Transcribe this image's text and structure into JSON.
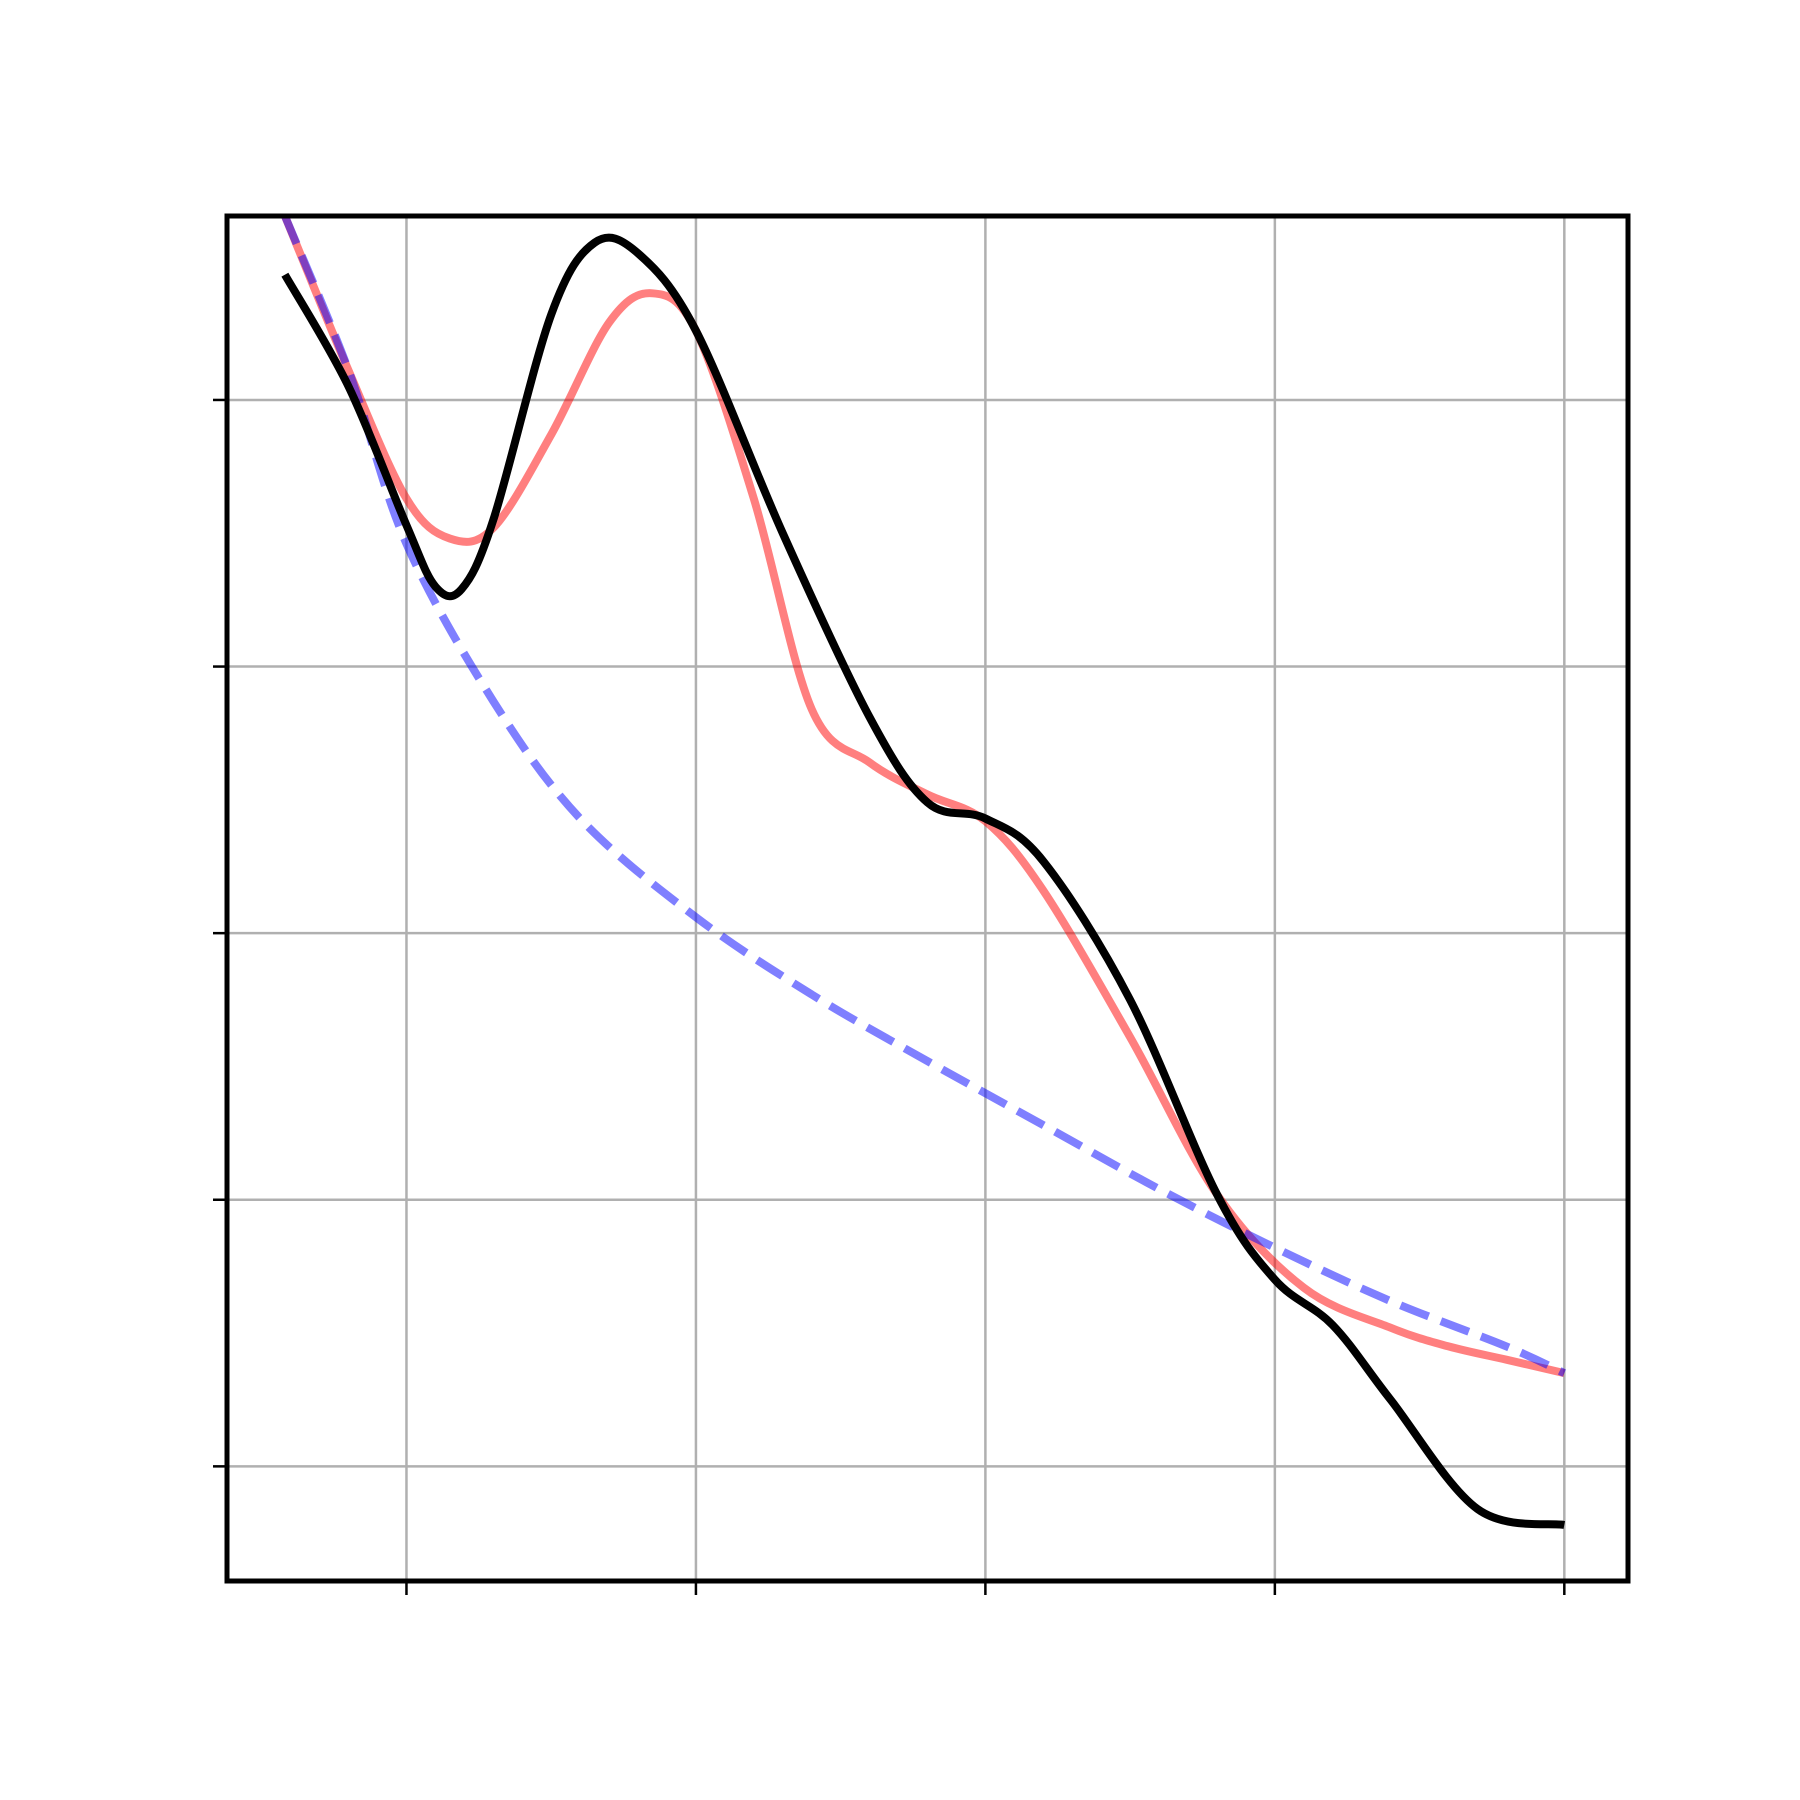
{
  "chart_data": {
    "type": "line",
    "title": "",
    "xlabel": "",
    "ylabel": "",
    "xlim": [
      -0.62,
      4.22
    ],
    "ylim": [
      -0.43,
      4.69
    ],
    "x_ticks": [
      0,
      1,
      2,
      3,
      4
    ],
    "y_ticks": [
      0,
      1,
      2,
      3,
      4
    ],
    "grid": true,
    "series": [
      {
        "style": "solid",
        "color": "#000000",
        "alpha": 1,
        "points": [
          [
            -0.42,
            4.47
          ],
          [
            -0.2,
            4.05
          ],
          [
            0,
            3.53
          ],
          [
            0.1,
            3.3
          ],
          [
            0.19,
            3.29
          ],
          [
            0.3,
            3.55
          ],
          [
            0.5,
            4.32
          ],
          [
            0.65,
            4.59
          ],
          [
            0.8,
            4.55
          ],
          [
            1,
            4.26
          ],
          [
            1.3,
            3.5
          ],
          [
            1.6,
            2.81
          ],
          [
            1.8,
            2.49
          ],
          [
            2,
            2.43
          ],
          [
            2.2,
            2.27
          ],
          [
            2.5,
            1.75
          ],
          [
            2.8,
            1.02
          ],
          [
            3,
            0.7
          ],
          [
            3.2,
            0.53
          ],
          [
            3.4,
            0.25
          ],
          [
            3.7,
            -0.16
          ],
          [
            4,
            -0.22
          ]
        ]
      },
      {
        "style": "solid",
        "color": "#ff0000",
        "alpha": 0.5,
        "points": [
          [
            -0.42,
            4.69
          ],
          [
            -0.2,
            4.11
          ],
          [
            0,
            3.63
          ],
          [
            0.15,
            3.48
          ],
          [
            0.3,
            3.52
          ],
          [
            0.5,
            3.87
          ],
          [
            0.7,
            4.29
          ],
          [
            0.85,
            4.4
          ],
          [
            1,
            4.26
          ],
          [
            1.2,
            3.63
          ],
          [
            1.4,
            2.84
          ],
          [
            1.6,
            2.64
          ],
          [
            1.8,
            2.52
          ],
          [
            2,
            2.42
          ],
          [
            2.2,
            2.16
          ],
          [
            2.5,
            1.61
          ],
          [
            2.8,
            1.02
          ],
          [
            3.1,
            0.67
          ],
          [
            3.4,
            0.52
          ],
          [
            3.6,
            0.45
          ],
          [
            3.8,
            0.4
          ],
          [
            4,
            0.35
          ]
        ]
      },
      {
        "style": "dashed",
        "color": "#0000ff",
        "alpha": 0.5,
        "points": [
          [
            -0.42,
            4.69
          ],
          [
            -0.2,
            4.11
          ],
          [
            0,
            3.46
          ],
          [
            0.3,
            2.87
          ],
          [
            0.6,
            2.43
          ],
          [
            1,
            2.06
          ],
          [
            1.4,
            1.77
          ],
          [
            1.8,
            1.52
          ],
          [
            2.2,
            1.28
          ],
          [
            2.6,
            1.04
          ],
          [
            3,
            0.82
          ],
          [
            3.4,
            0.62
          ],
          [
            3.8,
            0.45
          ],
          [
            4,
            0.35
          ]
        ]
      }
    ]
  }
}
